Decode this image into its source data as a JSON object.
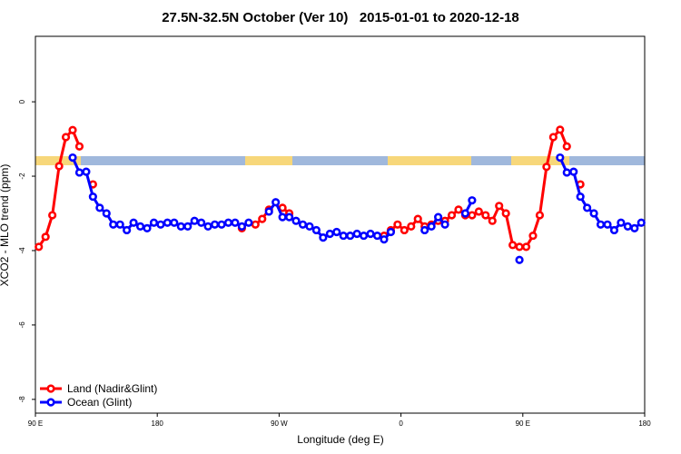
{
  "chart_data": {
    "type": "line",
    "title": "27.5N-32.5N October (Ver 10)   2015-01-01 to 2020-12-18",
    "xlabel": "Longitude (deg E)",
    "ylabel": "XCO2 - MLO trend (ppm)",
    "x": [
      92.5,
      97.5,
      102.5,
      107.5,
      112.5,
      117.5,
      122.5,
      127.5,
      132.5,
      137.5,
      142.5,
      147.5,
      152.5,
      157.5,
      162.5,
      167.5,
      172.5,
      177.5,
      182.5,
      187.5,
      192.5,
      197.5,
      202.5,
      207.5,
      212.5,
      217.5,
      222.5,
      227.5,
      232.5,
      237.5,
      242.5,
      247.5,
      252.5,
      257.5,
      262.5,
      267.5,
      272.5,
      277.5,
      282.5,
      287.5,
      292.5,
      297.5,
      302.5,
      307.5,
      312.5,
      317.5,
      322.5,
      327.5,
      332.5,
      337.5,
      342.5,
      347.5,
      352.5,
      357.5,
      362.5,
      367.5,
      372.5,
      377.5,
      382.5,
      387.5,
      392.5,
      397.5,
      402.5,
      407.5,
      412.5,
      417.5,
      422.5,
      427.5,
      432.5,
      437.5,
      442.5,
      447.5,
      452.5,
      457.5,
      462.5,
      467.5,
      472.5,
      477.5,
      482.5,
      487.5,
      492.5,
      497.5,
      502.5,
      507.5,
      512.5,
      517.5,
      522.5,
      527.5,
      532.5,
      537.5
    ],
    "series": [
      {
        "name": "Land (Nadir&Glint)",
        "color": "#ff0000",
        "values": [
          -3.9,
          -3.63,
          -3.05,
          -1.73,
          -0.95,
          -0.76,
          -1.2,
          null,
          -2.22,
          null,
          null,
          null,
          null,
          null,
          null,
          null,
          null,
          null,
          null,
          null,
          null,
          null,
          null,
          null,
          null,
          null,
          null,
          null,
          null,
          null,
          -3.4,
          null,
          -3.3,
          -3.15,
          -2.9,
          null,
          -2.85,
          -3.0,
          null,
          null,
          null,
          null,
          null,
          null,
          null,
          null,
          null,
          null,
          null,
          null,
          null,
          -3.6,
          -3.45,
          -3.3,
          -3.45,
          -3.35,
          -3.15,
          -3.35,
          -3.3,
          -3.2,
          -3.2,
          -3.05,
          -2.9,
          -3.05,
          -3.05,
          -2.95,
          -3.05,
          -3.2,
          -2.8,
          -3.0,
          -3.85,
          -3.9,
          -3.9,
          -3.6,
          -3.05,
          -1.75,
          -0.95,
          -0.75,
          -1.2,
          null,
          -2.22,
          null,
          null,
          null,
          null,
          null,
          null,
          null,
          null,
          null
        ]
      },
      {
        "name": "Ocean (Glint)",
        "color": "#0000ff",
        "values": [
          null,
          null,
          null,
          null,
          null,
          -1.5,
          -1.9,
          -1.88,
          -2.55,
          -2.85,
          -3.0,
          -3.3,
          -3.3,
          -3.45,
          -3.25,
          -3.35,
          -3.4,
          -3.25,
          -3.3,
          -3.25,
          -3.25,
          -3.35,
          -3.35,
          -3.2,
          -3.25,
          -3.35,
          -3.3,
          -3.3,
          -3.25,
          -3.25,
          -3.35,
          -3.25,
          null,
          null,
          -2.95,
          -2.7,
          -3.1,
          -3.1,
          -3.2,
          -3.3,
          -3.35,
          -3.45,
          -3.65,
          -3.55,
          -3.5,
          -3.6,
          -3.6,
          -3.55,
          -3.6,
          -3.55,
          -3.6,
          -3.7,
          -3.5,
          null,
          null,
          null,
          null,
          -3.45,
          -3.35,
          -3.1,
          -3.3,
          null,
          null,
          -3.0,
          -2.65,
          null,
          null,
          null,
          null,
          null,
          null,
          -4.25,
          null,
          null,
          null,
          null,
          null,
          -1.5,
          -1.9,
          -1.88,
          -2.55,
          -2.85,
          -3.0,
          -3.3,
          -3.3,
          -3.45,
          -3.25,
          -3.35,
          -3.4,
          -3.25
        ]
      }
    ],
    "xlim": [
      90,
      540
    ],
    "xticks": [
      {
        "value": 90,
        "label": "90 E"
      },
      180,
      {
        "value": 270,
        "label": "90 W"
      },
      {
        "value": 360,
        "label": "0"
      },
      {
        "value": 450,
        "label": "90 E"
      },
      {
        "value": 540,
        "label": "180"
      }
    ],
    "ylim": [
      -8.37,
      1.76
    ],
    "yticks": [
      0,
      -2,
      -4,
      -6,
      -8
    ],
    "legend": "bottom-left"
  }
}
